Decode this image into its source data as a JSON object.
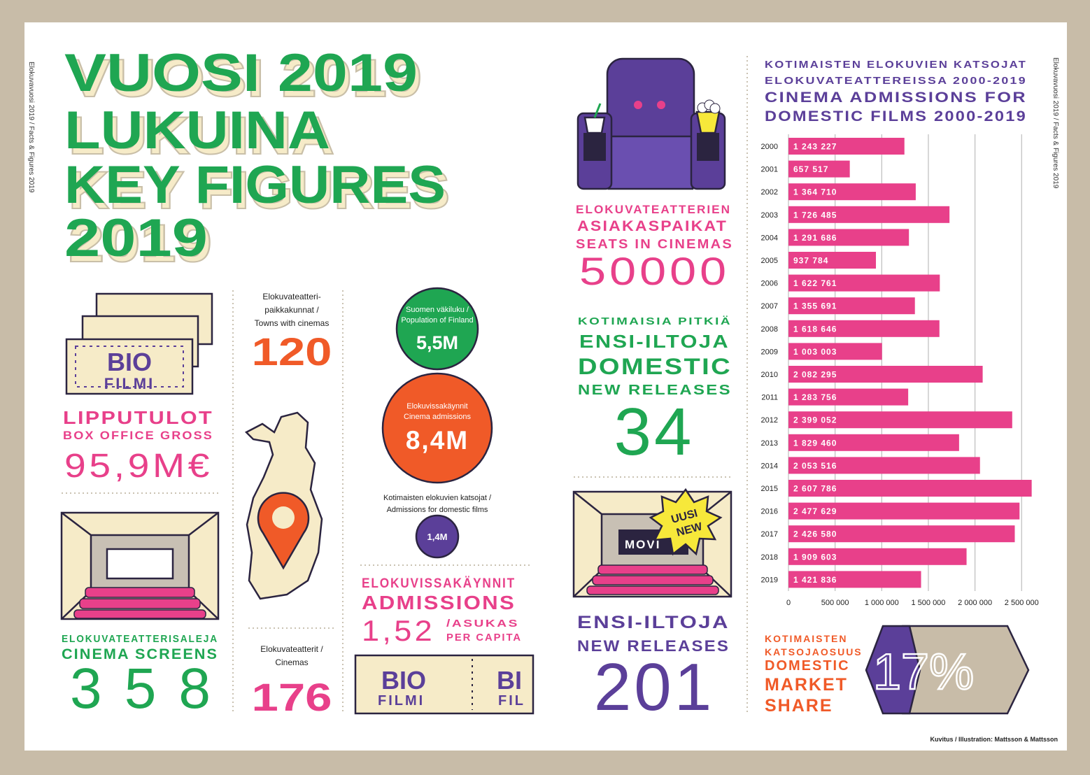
{
  "side_note": "Elokuvavuosi 2019 / Facts & Figures 2019",
  "title": [
    "VUOSI 2019",
    "LUKUINA",
    "KEY FIGURES",
    "2019"
  ],
  "box_office": {
    "ticket": [
      "BIO",
      "FILMI"
    ],
    "label_fi": "LIPPUTULOT",
    "label_en": "BOX OFFICE GROSS",
    "value": "95,9M€"
  },
  "screens": {
    "label_fi": "ELOKUVATEATTERISALEJA",
    "label_en": "CINEMA SCREENS",
    "value": "358"
  },
  "towns": {
    "label": [
      "Elokuvateatteri-",
      "paikkakunnat /",
      "Towns with cinemas"
    ],
    "value": "120"
  },
  "cinemas": {
    "label": [
      "Elokuvateatterit /",
      "Cinemas"
    ],
    "value": "176"
  },
  "population": {
    "label": [
      "Suomen väkiluku /",
      "Population of Finland"
    ],
    "value": "5,5M"
  },
  "admissions_total": {
    "label": [
      "Elokuvissakäynnit",
      "Cinema admissions"
    ],
    "value": "8,4M"
  },
  "admissions_domestic": {
    "label": [
      "Kotimaisten elokuvien katsojat /",
      "Admissions for domestic films"
    ],
    "value": "1,4M"
  },
  "per_capita": {
    "label_fi": "ELOKUVISSAKÄYNNIT",
    "label_en": "ADMISSIONS",
    "value": "1,52",
    "unit": [
      "/ASUKAS",
      "PER CAPITA"
    ],
    "ticket": [
      "BIO",
      "FILMI",
      "BI",
      "FIL"
    ]
  },
  "seats": {
    "label": [
      "ELOKUVATEATTERIEN",
      "ASIAKASPAIKAT",
      "SEATS IN CINEMAS"
    ],
    "value": "50000"
  },
  "domestic_releases": {
    "label": [
      "KOTIMAISIA PITKIÄ",
      "ENSI-ILTOJA",
      "DOMESTIC",
      "NEW RELEASES"
    ],
    "value": "34",
    "screen": "MOVI",
    "badge": [
      "UUSI",
      "NEW"
    ]
  },
  "new_releases": {
    "label": [
      "ENSI-ILTOJA",
      "NEW RELEASES"
    ],
    "value": "201"
  },
  "market_share": {
    "label": [
      "KOTIMAISTEN",
      "KATSOJAOSUUS",
      "DOMESTIC",
      "MARKET",
      "SHARE"
    ],
    "value": "17%"
  },
  "credit": "Kuvitus / Illustration: Mattsson & Mattsson",
  "chart_data": {
    "type": "barh",
    "title": [
      "KOTIMAISTEN ELOKUVIEN KATSOJAT",
      "ELOKUVATEATTEREISSA 2000-2019"
    ],
    "subtitle": [
      "CINEMA ADMISSIONS FOR",
      "DOMESTIC FILMS 2000-2019"
    ],
    "categories": [
      "2000",
      "2001",
      "2002",
      "2003",
      "2004",
      "2005",
      "2006",
      "2007",
      "2008",
      "2009",
      "2010",
      "2011",
      "2012",
      "2013",
      "2014",
      "2015",
      "2016",
      "2017",
      "2018",
      "2019"
    ],
    "values": [
      1243227,
      657517,
      1364710,
      1726485,
      1291686,
      937784,
      1622761,
      1355691,
      1618646,
      1003003,
      2082295,
      1283756,
      2399052,
      1829460,
      2053516,
      2607786,
      2477629,
      2426580,
      1909603,
      1421836
    ],
    "value_labels": [
      "1 243 227",
      "657 517",
      "1 364 710",
      "1 726 485",
      "1 291 686",
      "937 784",
      "1 622 761",
      "1 355 691",
      "1 618 646",
      "1 003 003",
      "2 082 295",
      "1 283 756",
      "2 399 052",
      "1 829 460",
      "2 053 516",
      "2 607 786",
      "2 477 629",
      "2 426 580",
      "1 909 603",
      "1 421 836"
    ],
    "color": "#e8408a",
    "xlim": [
      0,
      2600000
    ],
    "xticks": [
      0,
      {
        "value": 500000,
        "label": "500 000"
      },
      {
        "value": 1000000,
        "label": "1 000 000"
      },
      {
        "value": 1500000,
        "label": "1 500 000"
      },
      {
        "value": 2000000,
        "label": "2 000 000"
      },
      {
        "value": 2500000,
        "label": "2 500 000"
      }
    ],
    "grid": true
  }
}
